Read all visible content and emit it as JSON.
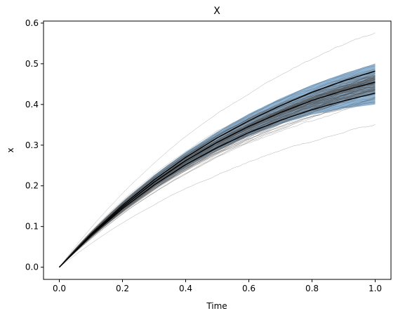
{
  "chart_data": {
    "type": "line",
    "title": "X",
    "xlabel": "Time",
    "ylabel": "x",
    "xlim": [
      -0.05,
      1.05
    ],
    "ylim": [
      -0.03,
      0.605
    ],
    "xticks": [
      0.0,
      0.2,
      0.4,
      0.6,
      0.8,
      1.0
    ],
    "xtick_labels": [
      "0.0",
      "0.2",
      "0.4",
      "0.6",
      "0.8",
      "1.0"
    ],
    "yticks": [
      0.0,
      0.1,
      0.2,
      0.3,
      0.4,
      0.5,
      0.6
    ],
    "ytick_labels": [
      "0.0",
      "0.1",
      "0.2",
      "0.3",
      "0.4",
      "0.5",
      "0.6"
    ],
    "grid": false,
    "band": {
      "color": "#7ba7cc",
      "x": [
        0.0,
        0.1,
        0.2,
        0.3,
        0.4,
        0.5,
        0.6,
        0.7,
        0.8,
        0.9,
        1.0
      ],
      "lower": [
        0.0,
        0.075,
        0.14,
        0.197,
        0.245,
        0.288,
        0.323,
        0.352,
        0.375,
        0.39,
        0.4
      ],
      "upper": [
        0.0,
        0.085,
        0.16,
        0.226,
        0.283,
        0.333,
        0.377,
        0.415,
        0.448,
        0.476,
        0.5
      ]
    },
    "ensemble": {
      "color": "#4d4d4d",
      "count": 120,
      "x_step": 0.01,
      "final_min": 0.35,
      "final_max": 0.575
    },
    "mean_lines": {
      "color": "#000000",
      "x": [
        0.0,
        0.1,
        0.2,
        0.3,
        0.4,
        0.5,
        0.6,
        0.7,
        0.8,
        0.9,
        1.0
      ],
      "series": [
        {
          "values": [
            0.0,
            0.081,
            0.152,
            0.215,
            0.27,
            0.318,
            0.36,
            0.397,
            0.43,
            0.458,
            0.482
          ]
        },
        {
          "values": [
            0.0,
            0.079,
            0.148,
            0.209,
            0.262,
            0.307,
            0.346,
            0.38,
            0.41,
            0.434,
            0.455
          ]
        },
        {
          "values": [
            0.0,
            0.077,
            0.144,
            0.202,
            0.252,
            0.294,
            0.331,
            0.361,
            0.387,
            0.409,
            0.428
          ]
        }
      ]
    }
  }
}
